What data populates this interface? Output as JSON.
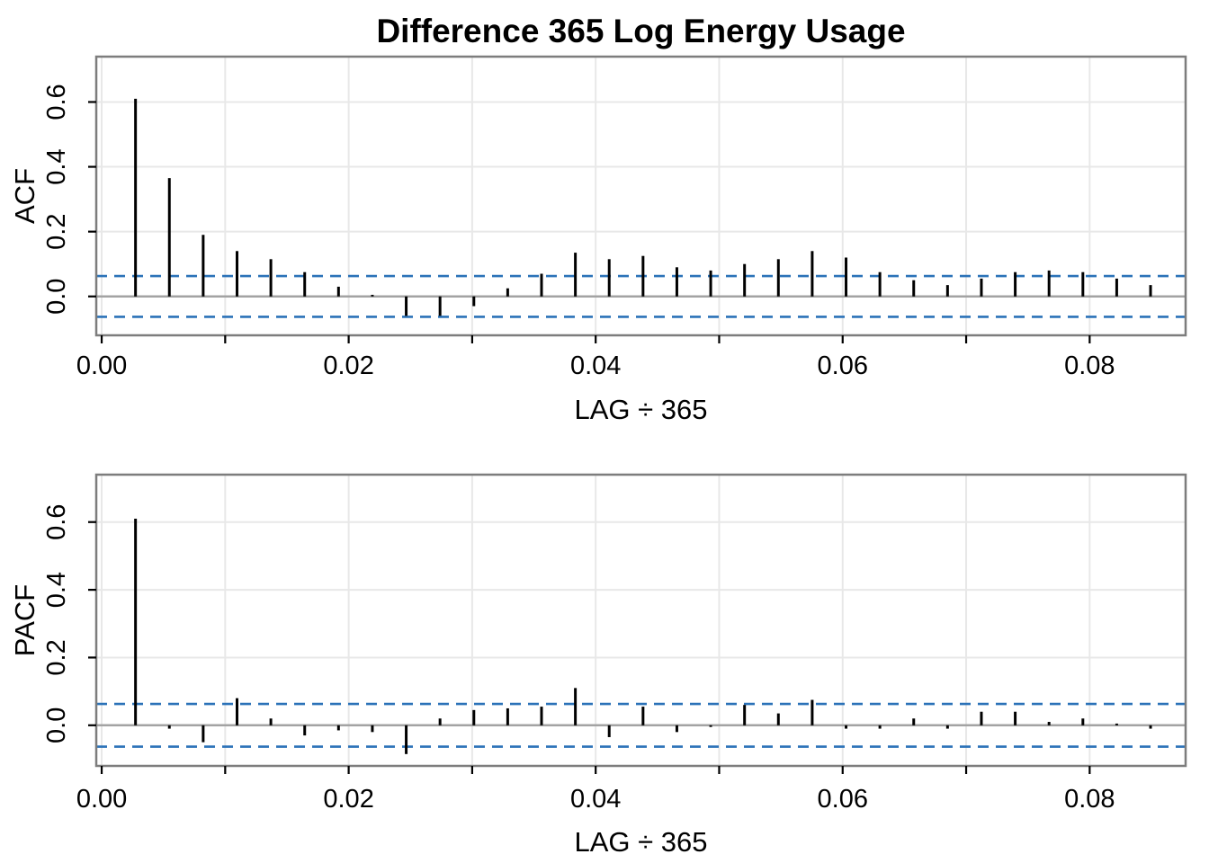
{
  "title": "Difference 365 Log Energy Usage",
  "colors": {
    "spike": "#000000",
    "conf_band": "#2b72b8",
    "zero_line": "#a3a3a3",
    "grid": "#e8e8e8",
    "panel_border": "#7d7d7d",
    "tick": "#000000",
    "background": "#ffffff"
  },
  "chart_data": [
    {
      "type": "bar",
      "style": "stem-correlogram",
      "series_name": "ACF",
      "ylabel": "ACF",
      "xlabel": "LAG ÷ 365",
      "x_definition": "x = lag / 365",
      "lags": [
        1,
        2,
        3,
        4,
        5,
        6,
        7,
        8,
        9,
        10,
        11,
        12,
        13,
        14,
        15,
        16,
        17,
        18,
        19,
        20,
        21,
        22,
        23,
        24,
        25,
        26,
        27,
        28,
        29,
        30,
        31
      ],
      "values": [
        0.61,
        0.365,
        0.19,
        0.14,
        0.115,
        0.075,
        0.03,
        0.005,
        -0.06,
        -0.06,
        -0.03,
        0.025,
        0.07,
        0.135,
        0.115,
        0.125,
        0.09,
        0.08,
        0.1,
        0.115,
        0.14,
        0.12,
        0.075,
        0.05,
        0.035,
        0.055,
        0.075,
        0.08,
        0.075,
        0.055,
        0.035
      ],
      "confidence_band": 0.063,
      "ylim": [
        -0.12,
        0.74
      ],
      "xlim": [
        -0.00044,
        0.08777
      ],
      "yticks": [
        0,
        0.2,
        0.4,
        0.6
      ],
      "ytick_labels": [
        "0.0",
        "0.2",
        "0.4",
        "0.6"
      ],
      "xticks": [
        0,
        0.02,
        0.04,
        0.06,
        0.08
      ],
      "xtick_labels": [
        "0.00",
        "0.02",
        "0.04",
        "0.06",
        "0.08"
      ],
      "x_minor_tick_step": 0.01,
      "grid": true,
      "legend": null
    },
    {
      "type": "bar",
      "style": "stem-correlogram",
      "series_name": "PACF",
      "ylabel": "PACF",
      "xlabel": "LAG ÷ 365",
      "x_definition": "x = lag / 365",
      "lags": [
        1,
        2,
        3,
        4,
        5,
        6,
        7,
        8,
        9,
        10,
        11,
        12,
        13,
        14,
        15,
        16,
        17,
        18,
        19,
        20,
        21,
        22,
        23,
        24,
        25,
        26,
        27,
        28,
        29,
        30,
        31
      ],
      "values": [
        0.61,
        -0.01,
        -0.05,
        0.08,
        0.02,
        -0.03,
        -0.015,
        -0.02,
        -0.085,
        0.02,
        0.045,
        0.05,
        0.055,
        0.11,
        -0.035,
        0.055,
        -0.02,
        -0.005,
        0.06,
        0.035,
        0.075,
        -0.01,
        -0.01,
        0.02,
        -0.01,
        0.04,
        0.04,
        0.01,
        0.02,
        0.005,
        -0.01
      ],
      "confidence_band": 0.063,
      "ylim": [
        -0.12,
        0.74
      ],
      "xlim": [
        -0.00044,
        0.08777
      ],
      "yticks": [
        0,
        0.2,
        0.4,
        0.6
      ],
      "ytick_labels": [
        "0.0",
        "0.2",
        "0.4",
        "0.6"
      ],
      "xticks": [
        0,
        0.02,
        0.04,
        0.06,
        0.08
      ],
      "xtick_labels": [
        "0.00",
        "0.02",
        "0.04",
        "0.06",
        "0.08"
      ],
      "x_minor_tick_step": 0.01,
      "grid": true,
      "legend": null
    }
  ]
}
